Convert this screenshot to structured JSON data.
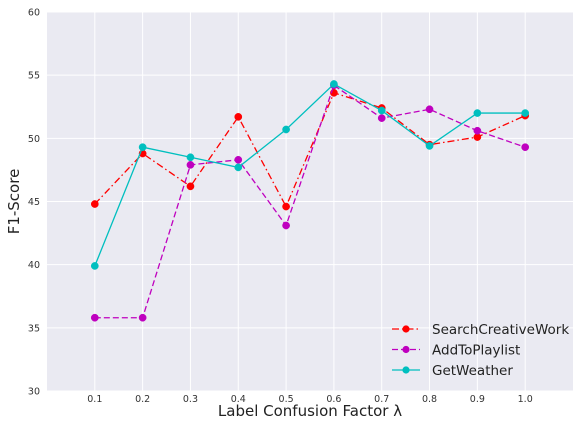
{
  "chart_data": {
    "type": "line",
    "xlabel": "Label Confusion Factor λ",
    "ylabel": "F1-Score",
    "x": [
      0.1,
      0.2,
      0.3,
      0.4,
      0.5,
      0.6,
      0.7,
      0.8,
      0.9,
      1.0
    ],
    "x_tick_labels": [
      "0.1",
      "0.2",
      "0.3",
      "0.4",
      "0.5",
      "0.6",
      "0.7",
      "0.8",
      "0.9",
      "1.0"
    ],
    "xlim": [
      0.0,
      1.1
    ],
    "ylim": [
      30,
      60
    ],
    "y_ticks": [
      30,
      35,
      40,
      45,
      50,
      55,
      60
    ],
    "grid": true,
    "background_color": "#eaeaf2",
    "legend_position": "lower-right",
    "series": [
      {
        "name": "SearchCreativeWork",
        "color": "#ff0000",
        "line_style": "dash-dot",
        "values": [
          44.8,
          48.8,
          46.2,
          51.7,
          44.6,
          53.6,
          52.4,
          49.5,
          50.1,
          51.8
        ]
      },
      {
        "name": "AddToPlaylist",
        "color": "#bf00bf",
        "line_style": "dashed",
        "values": [
          35.8,
          35.8,
          47.9,
          48.3,
          43.1,
          54.2,
          51.6,
          52.3,
          50.6,
          49.3
        ]
      },
      {
        "name": "GetWeather",
        "color": "#00bfbf",
        "line_style": "solid",
        "values": [
          39.9,
          49.3,
          48.5,
          47.7,
          50.7,
          54.3,
          52.2,
          49.4,
          52.0,
          52.0
        ]
      }
    ]
  }
}
